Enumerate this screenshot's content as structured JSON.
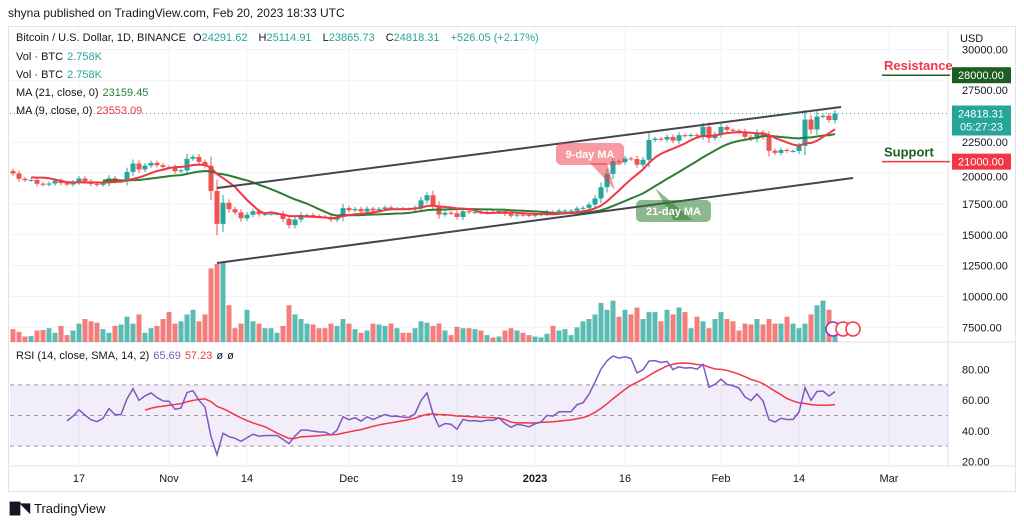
{
  "header": {
    "published": "shyna published on TradingView.com, Feb 20, 2023 18:33 UTC"
  },
  "legend": {
    "symbol": "Bitcoin / U.S. Dollar, 1D, BINANCE",
    "o_label": "O",
    "open": "24291.62",
    "h_label": "H",
    "high": "25114.91",
    "l_label": "L",
    "low": "23865.73",
    "c_label": "C",
    "close": "24818.31",
    "change": "+526.05 (+2.17%)",
    "vol1_label": "Vol · BTC",
    "vol1": "2.758K",
    "vol2_label": "Vol · BTC",
    "vol2": "2.758K",
    "ma21_label": "MA (21, close, 0)",
    "ma21": "23159.45",
    "ma9_label": "MA (9, close, 0)",
    "ma9": "23553.09",
    "rsi_label": "RSI (14, close, SMA, 14, 2)",
    "rsi": "65.69",
    "rsi_sma": "57.23",
    "rsi_extra1": "ø",
    "rsi_extra2": "ø"
  },
  "footer": {
    "brand": "TradingView"
  },
  "colors": {
    "up": "#26a69a",
    "down": "#ef5350",
    "ma9": "#f23645",
    "ma21": "#2e7d32",
    "rsi": "#7e57c2",
    "rsi_sma": "#f23645",
    "resistance": "#1b5e20",
    "support": "#f23645",
    "last": "#26a69a"
  },
  "chart_data": {
    "type": "candlestick",
    "currency": "USD",
    "start_date": "2022-10-01",
    "closes": [
      19310,
      19060,
      19630,
      20340,
      20160,
      19960,
      19530,
      19420,
      19440,
      19130,
      19060,
      19150,
      19380,
      19180,
      19070,
      19260,
      19550,
      19330,
      19120,
      19040,
      19160,
      19570,
      19330,
      19330,
      20090,
      20770,
      20290,
      20600,
      20820,
      20630,
      20490,
      20480,
      20150,
      20210,
      21150,
      21300,
      20900,
      20590,
      18540,
      15880,
      17590,
      17070,
      16810,
      16330,
      16620,
      16900,
      16660,
      16690,
      16700,
      16700,
      16280,
      15780,
      16230,
      16600,
      16600,
      16520,
      16460,
      16440,
      16220,
      16440,
      17160,
      16980,
      17090,
      16890,
      17110,
      16970,
      17090,
      17210,
      17130,
      17130,
      17090,
      17080,
      17210,
      17780,
      18200,
      17360,
      16630,
      16780,
      16740,
      16440,
      16900,
      16820,
      16830,
      16790,
      16840,
      16830,
      16920,
      16700,
      16540,
      16630,
      16600,
      16540,
      16620,
      16670,
      16850,
      16830,
      16950,
      16950,
      16950,
      17130,
      17180,
      17440,
      17940,
      18850,
      19930,
      20950,
      20880,
      21180,
      21130,
      20670,
      21070,
      22670,
      22780,
      22710,
      22920,
      22620,
      23060,
      23010,
      23080,
      23030,
      23740,
      22830,
      23130,
      23730,
      23490,
      23430,
      23330,
      22930,
      22760,
      23260,
      22930,
      21800,
      21630,
      21860,
      21780,
      21780,
      22200,
      24330,
      23520,
      24570,
      24630,
      24291.62,
      24818.31
    ],
    "volumes_k": [
      4,
      3.5,
      2,
      1.5,
      2.5,
      2.8,
      2.2,
      1.2,
      1.3,
      2.5,
      2.6,
      3,
      2,
      3.5,
      1.5,
      2.5,
      4,
      5,
      4.5,
      4.2,
      2.8,
      2,
      3.5,
      3.8,
      5.5,
      4,
      6,
      2,
      3,
      3.5,
      5,
      6.5,
      4,
      4.5,
      6,
      7,
      4.5,
      6,
      16,
      17,
      17.5,
      8,
      3,
      4,
      7,
      4.5,
      4,
      3,
      3,
      2,
      3.5,
      8,
      6,
      5,
      4,
      3.8,
      3,
      3,
      4,
      3.5,
      5,
      4,
      2.8,
      2,
      2.5,
      4,
      3.8,
      3.5,
      4,
      3,
      2,
      2,
      3,
      4.5,
      4.2,
      3.5,
      4,
      2.5,
      1.5,
      3.3,
      3,
      3,
      2.8,
      2.5,
      1.5,
      1,
      1.2,
      2.5,
      3,
      2.5,
      2,
      1.5,
      1.2,
      1,
      1.8,
      3.5,
      2.5,
      2.8,
      1.5,
      3.2,
      4.5,
      5,
      6,
      8.5,
      7,
      9,
      5.5,
      7,
      6,
      7.5,
      5,
      6.5,
      6.5,
      4.5,
      7,
      6,
      7.5,
      6.5,
      3,
      5.5,
      4.5,
      3,
      5,
      6.5,
      5,
      4.5,
      2.5,
      4,
      3.8,
      5,
      3.8,
      5,
      4,
      4,
      5.5,
      4,
      3,
      4,
      6,
      8,
      9,
      7,
      2.758
    ],
    "price_ticks": [
      "30000.00",
      "27500.00",
      "22500.00",
      "20000.00",
      "17500.00",
      "15000.00",
      "12500.00",
      "10000.00",
      "7500.00"
    ],
    "price_tick_values": [
      30000,
      27500,
      22500,
      20000,
      17500,
      15000,
      12500,
      10000,
      7500
    ],
    "rsi_ticks": [
      "80.00",
      "60.00",
      "40.00",
      "20.00"
    ],
    "rsi_tick_values": [
      80,
      60,
      40,
      20
    ],
    "x_ticks": [
      {
        "label": "17",
        "day": 16
      },
      {
        "label": "Nov",
        "day": 31
      },
      {
        "label": "14",
        "day": 44
      },
      {
        "label": "Dec",
        "day": 61
      },
      {
        "label": "19",
        "day": 79
      },
      {
        "label": "2023",
        "day": 92
      },
      {
        "label": "16",
        "day": 107
      },
      {
        "label": "Feb",
        "day": 123
      },
      {
        "label": "14",
        "day": 136
      },
      {
        "label": "Mar",
        "day": 151
      }
    ],
    "levels": [
      {
        "label": "Resistance",
        "value": 28000,
        "tag": "28000.00"
      },
      {
        "label": "Support",
        "value": 21000,
        "tag": "21000.00"
      }
    ],
    "last_price": {
      "value": 24818.31,
      "tag": "24818.31",
      "countdown": "05:27:23"
    },
    "trendlines": [
      {
        "from": [
          39,
          18785
        ],
        "to": [
          143,
          25344
        ]
      },
      {
        "from": [
          39,
          12713
        ],
        "to": [
          145,
          19595
        ]
      }
    ],
    "annotations": [
      {
        "text": "9-day MA"
      },
      {
        "text": "21-day MA"
      }
    ],
    "ma_periods": [
      9,
      21
    ],
    "rsi_period": 14,
    "rsi_sma_period": 14,
    "rsi_bands": [
      70,
      50,
      30
    ]
  }
}
